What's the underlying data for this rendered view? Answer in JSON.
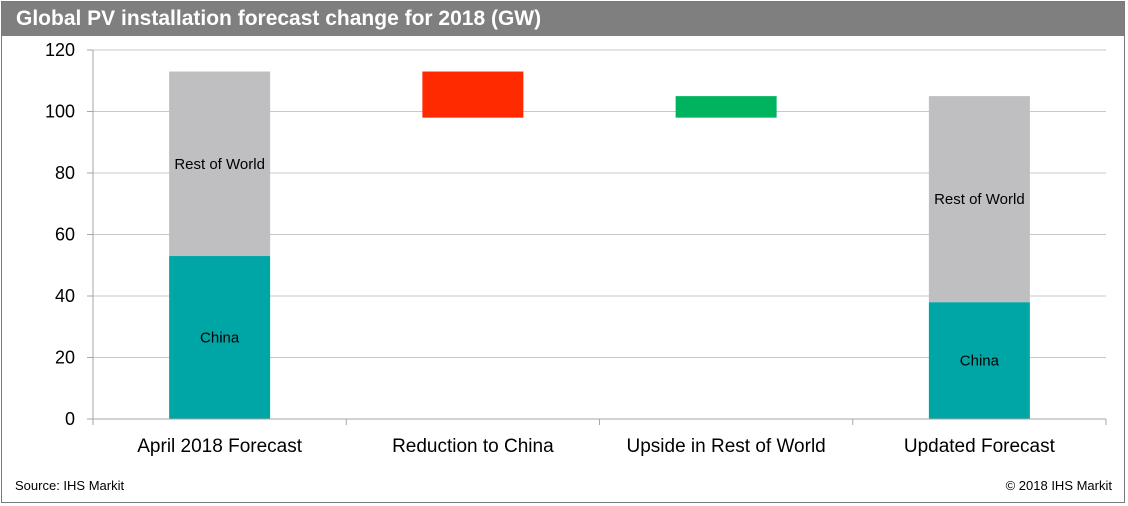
{
  "title": "Global PV installation forecast change for 2018 (GW)",
  "source": "Source: IHS Markit",
  "copyright": "© 2018 IHS Markit",
  "colors": {
    "china": "#00a5a6",
    "rest_of_world": "#bfbfc1",
    "reduction": "#ff2a00",
    "upside": "#00b35f",
    "gridline": "#c8c8c8",
    "axis": "#a6a6a6"
  },
  "chart_data": {
    "type": "bar",
    "subtype": "waterfall",
    "categories": [
      "April 2018 Forecast",
      "Reduction to China",
      "Upside in Rest of World",
      "Updated Forecast"
    ],
    "ylim": [
      0,
      120
    ],
    "yticks": [
      0,
      20,
      40,
      60,
      80,
      100,
      120
    ],
    "grid": true,
    "bars": [
      {
        "category": "April 2018 Forecast",
        "segments": [
          {
            "label": "China",
            "base": 0,
            "value": 53,
            "color_key": "china"
          },
          {
            "label": "Rest of World",
            "base": 53,
            "value": 60,
            "color_key": "rest_of_world"
          }
        ]
      },
      {
        "category": "Reduction to China",
        "segments": [
          {
            "label": "",
            "base": 98,
            "value": 15,
            "color_key": "reduction"
          }
        ]
      },
      {
        "category": "Upside in Rest of World",
        "segments": [
          {
            "label": "",
            "base": 98,
            "value": 7,
            "color_key": "upside"
          }
        ]
      },
      {
        "category": "Updated Forecast",
        "segments": [
          {
            "label": "China",
            "base": 0,
            "value": 38,
            "color_key": "china"
          },
          {
            "label": "Rest of World",
            "base": 38,
            "value": 67,
            "color_key": "rest_of_world"
          }
        ]
      }
    ]
  }
}
